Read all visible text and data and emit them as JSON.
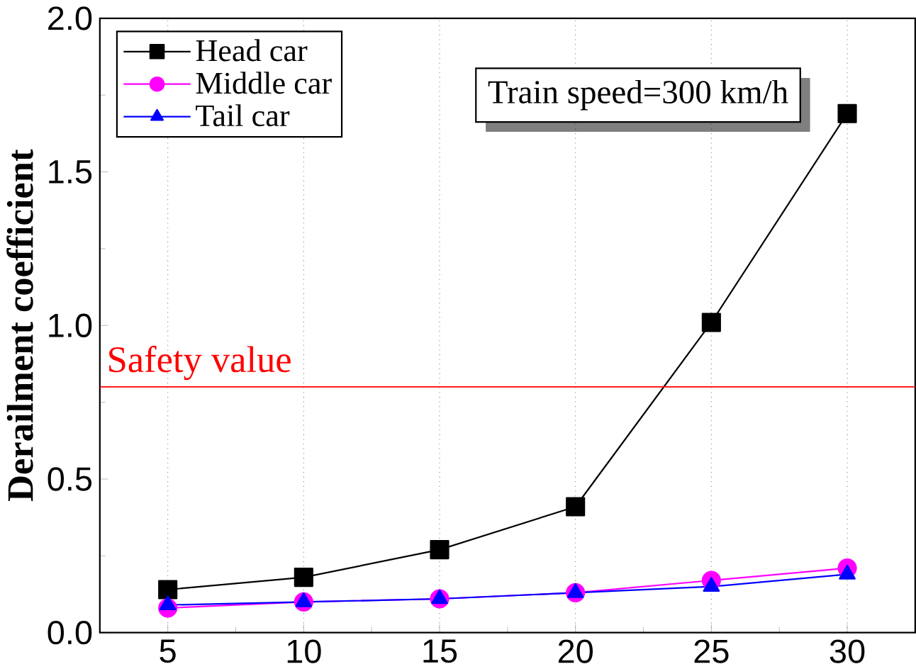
{
  "chart_data": {
    "type": "line",
    "ylabel": "Derailment coefficient",
    "x": [
      5,
      10,
      15,
      20,
      25,
      30
    ],
    "series": [
      {
        "name": "Head car",
        "color": "#000000",
        "marker": "square",
        "values": [
          0.14,
          0.18,
          0.27,
          0.41,
          1.01,
          1.69
        ]
      },
      {
        "name": "Middle car",
        "color": "#ff00ff",
        "marker": "circle",
        "values": [
          0.08,
          0.1,
          0.11,
          0.13,
          0.17,
          0.21
        ]
      },
      {
        "name": "Tail car",
        "color": "#0000ff",
        "marker": "triangle",
        "values": [
          0.09,
          0.1,
          0.11,
          0.13,
          0.15,
          0.19
        ]
      }
    ],
    "xlim": [
      2.5,
      32.5
    ],
    "ylim": [
      0,
      2.0
    ],
    "xticks": [
      5,
      10,
      15,
      20,
      25,
      30
    ],
    "yticks": [
      {
        "value": 0,
        "label": "0.0"
      },
      {
        "value": 0.5,
        "label": "0.5"
      },
      {
        "value": 1.0,
        "label": "1.0"
      },
      {
        "value": 1.5,
        "label": "1.5"
      },
      {
        "value": 2.0,
        "label": "2.0"
      }
    ],
    "grid": "x",
    "legend": "top left",
    "line_style": "solid",
    "ref_lines": [
      {
        "axis": "y",
        "value": 0.8,
        "label": "Safety value",
        "color": "#ff0000"
      }
    ],
    "annotations": [
      "Train speed=300 km/h"
    ]
  }
}
